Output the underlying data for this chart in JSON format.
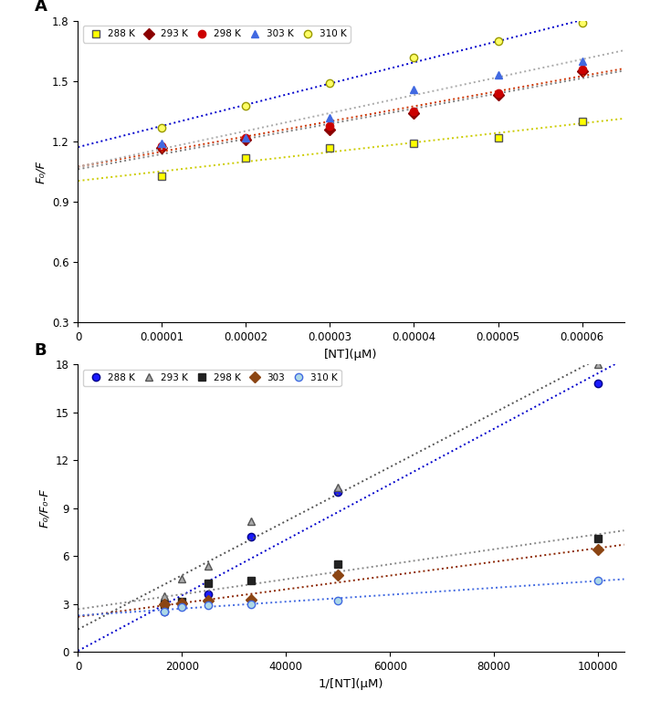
{
  "panel_A": {
    "title": "A",
    "xlabel": "[NT](μM)",
    "ylabel": "F₀/F",
    "xlim": [
      0,
      6.5e-05
    ],
    "ylim": [
      0.3,
      1.8
    ],
    "yticks": [
      0.3,
      0.6,
      0.9,
      1.2,
      1.5,
      1.8
    ],
    "xticks": [
      0,
      1e-05,
      2e-05,
      3e-05,
      4e-05,
      5e-05,
      6e-05
    ],
    "series": [
      {
        "label": "288 K",
        "marker": "s",
        "marker_face": "#ffff00",
        "marker_edge": "#555555",
        "line_color": "#cccc00",
        "x": [
          1e-05,
          2e-05,
          3e-05,
          4e-05,
          5e-05,
          6e-05
        ],
        "y": [
          1.03,
          1.12,
          1.17,
          1.19,
          1.22,
          1.3
        ]
      },
      {
        "label": "293 K",
        "marker": "D",
        "marker_face": "#8B0000",
        "marker_edge": "#8B0000",
        "line_color": "#808080",
        "x": [
          1e-05,
          2e-05,
          3e-05,
          4e-05,
          5e-05,
          6e-05
        ],
        "y": [
          1.17,
          1.21,
          1.26,
          1.34,
          1.43,
          1.55
        ]
      },
      {
        "label": "298 K",
        "marker": "o",
        "marker_face": "#cc0000",
        "marker_edge": "#cc0000",
        "line_color": "#cc3300",
        "x": [
          1e-05,
          2e-05,
          3e-05,
          4e-05,
          5e-05,
          6e-05
        ],
        "y": [
          1.18,
          1.22,
          1.28,
          1.35,
          1.44,
          1.56
        ]
      },
      {
        "label": "303 K",
        "marker": "^",
        "marker_face": "#4169E1",
        "marker_edge": "#4169E1",
        "line_color": "#aaaaaa",
        "x": [
          1e-05,
          2e-05,
          3e-05,
          4e-05,
          5e-05,
          6e-05
        ],
        "y": [
          1.19,
          1.22,
          1.32,
          1.46,
          1.53,
          1.6
        ]
      },
      {
        "label": "310 K",
        "marker": "o",
        "marker_face": "#ffff66",
        "marker_edge": "#999900",
        "line_color": "#0000cc",
        "x": [
          1e-05,
          2e-05,
          3e-05,
          4e-05,
          5e-05,
          6e-05
        ],
        "y": [
          1.27,
          1.38,
          1.49,
          1.62,
          1.7,
          1.79
        ]
      }
    ]
  },
  "panel_B": {
    "title": "B",
    "xlabel": "1/[NT](μM)",
    "ylabel": "F₀/F₀-F",
    "xlim": [
      0,
      105000
    ],
    "ylim": [
      0,
      18
    ],
    "yticks": [
      0,
      3,
      6,
      9,
      12,
      15,
      18
    ],
    "xticks": [
      0,
      20000,
      40000,
      60000,
      80000,
      100000
    ],
    "series": [
      {
        "label": "288 K",
        "marker": "o",
        "marker_face": "#1a1aff",
        "marker_edge": "#00008B",
        "line_color": "#0000cc",
        "x": [
          16667,
          20000,
          25000,
          33333,
          50000,
          100000
        ],
        "y": [
          2.55,
          2.85,
          3.6,
          7.2,
          10.0,
          16.8
        ]
      },
      {
        "label": "293 K",
        "marker": "^",
        "marker_face": "#aaaaaa",
        "marker_edge": "#555555",
        "line_color": "#555555",
        "x": [
          16667,
          20000,
          25000,
          33333,
          50000,
          100000
        ],
        "y": [
          3.5,
          4.6,
          5.4,
          8.2,
          10.3,
          18.0
        ]
      },
      {
        "label": "298 K",
        "marker": "s",
        "marker_face": "#222222",
        "marker_edge": "#222222",
        "line_color": "#888888",
        "x": [
          16667,
          20000,
          25000,
          33333,
          50000,
          100000
        ],
        "y": [
          3.0,
          3.15,
          4.3,
          4.5,
          5.5,
          7.1
        ]
      },
      {
        "label": "303",
        "marker": "D",
        "marker_face": "#8B4513",
        "marker_edge": "#8B4513",
        "line_color": "#8B2500",
        "x": [
          16667,
          20000,
          25000,
          33333,
          50000,
          100000
        ],
        "y": [
          3.0,
          3.05,
          3.2,
          3.3,
          4.8,
          6.4
        ]
      },
      {
        "label": "310 K",
        "marker": "o",
        "marker_face": "#add8e6",
        "marker_edge": "#4169E1",
        "line_color": "#4169E1",
        "x": [
          16667,
          20000,
          25000,
          33333,
          50000,
          100000
        ],
        "y": [
          2.55,
          2.8,
          2.95,
          3.0,
          3.2,
          4.5
        ]
      }
    ]
  }
}
